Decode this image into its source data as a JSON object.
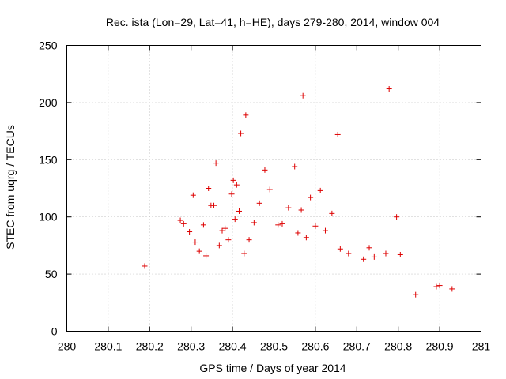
{
  "chart_data": {
    "type": "scatter",
    "title": "Rec. ista (Lon=29, Lat=41, h=HE), days 279-280, 2014, window 004",
    "xlabel": "GPS time / Days of year 2014",
    "ylabel": "STEC from uqrg / TECUs",
    "xlim": [
      280,
      281
    ],
    "ylim": [
      0,
      250
    ],
    "x_ticks": [
      "280",
      "280.1",
      "280.2",
      "280.3",
      "280.4",
      "280.5",
      "280.6",
      "280.7",
      "280.8",
      "280.9",
      "281"
    ],
    "y_ticks": [
      "0",
      "50",
      "100",
      "150",
      "200",
      "250"
    ],
    "grid": true,
    "marker": "+",
    "color": "#dd0000",
    "series": [
      {
        "points": [
          [
            280.188,
            57
          ],
          [
            280.274,
            97
          ],
          [
            280.282,
            94
          ],
          [
            280.296,
            87
          ],
          [
            280.305,
            119
          ],
          [
            280.31,
            78
          ],
          [
            280.32,
            70
          ],
          [
            280.33,
            93
          ],
          [
            280.336,
            66
          ],
          [
            280.342,
            125
          ],
          [
            280.348,
            110
          ],
          [
            280.355,
            110
          ],
          [
            280.36,
            147
          ],
          [
            280.368,
            75
          ],
          [
            280.375,
            88
          ],
          [
            280.382,
            90
          ],
          [
            280.39,
            80
          ],
          [
            280.398,
            120
          ],
          [
            280.402,
            132
          ],
          [
            280.406,
            98
          ],
          [
            280.41,
            128
          ],
          [
            280.416,
            105
          ],
          [
            280.42,
            173
          ],
          [
            280.428,
            68
          ],
          [
            280.432,
            189
          ],
          [
            280.44,
            80
          ],
          [
            280.452,
            95
          ],
          [
            280.465,
            112
          ],
          [
            280.478,
            141
          ],
          [
            280.49,
            124
          ],
          [
            280.51,
            93
          ],
          [
            280.52,
            94
          ],
          [
            280.535,
            108
          ],
          [
            280.55,
            144
          ],
          [
            280.558,
            86
          ],
          [
            280.566,
            106
          ],
          [
            280.57,
            206
          ],
          [
            280.578,
            82
          ],
          [
            280.588,
            117
          ],
          [
            280.6,
            92
          ],
          [
            280.612,
            123
          ],
          [
            280.624,
            88
          ],
          [
            280.64,
            103
          ],
          [
            280.654,
            172
          ],
          [
            280.66,
            72
          ],
          [
            280.68,
            68
          ],
          [
            280.716,
            63
          ],
          [
            280.73,
            73
          ],
          [
            280.742,
            65
          ],
          [
            280.77,
            68
          ],
          [
            280.778,
            212
          ],
          [
            280.796,
            100
          ],
          [
            280.805,
            67
          ],
          [
            280.842,
            32
          ],
          [
            280.892,
            39
          ],
          [
            280.9,
            40
          ],
          [
            280.93,
            37
          ]
        ]
      }
    ]
  }
}
